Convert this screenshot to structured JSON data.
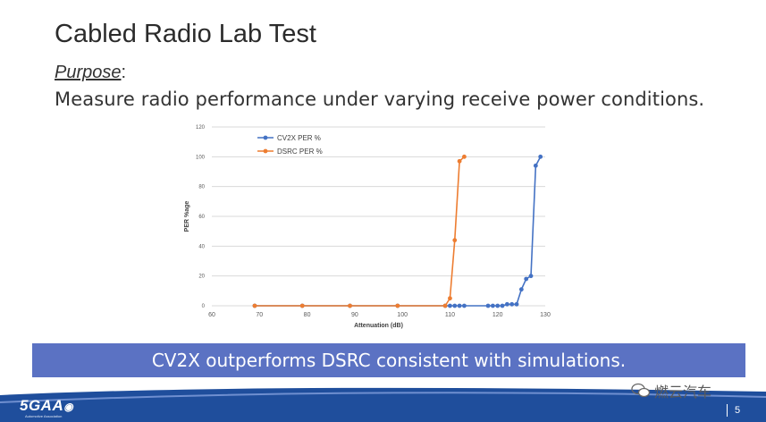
{
  "slide": {
    "title": "Cabled Radio Lab Test",
    "purpose_label": "Purpose",
    "purpose_colon": ":",
    "purpose_text": "Measure radio performance under varying receive power conditions.",
    "banner_text": "CV2X outperforms DSRC consistent with simulations.",
    "page_number": "5",
    "logo_text": "5GAA",
    "logo_subtext": "Automotive Association",
    "watermark_text": "燃云汽车"
  },
  "colors": {
    "banner": "#5b72c3",
    "cv2x": "#4472c4",
    "dsrc": "#ed7d31",
    "footer": "#1f4e9c"
  },
  "chart_data": {
    "type": "line",
    "title": "",
    "xlabel": "Attenuation (dB)",
    "ylabel": "PER %age",
    "xlim": [
      60,
      130
    ],
    "ylim": [
      0,
      120
    ],
    "xticks": [
      60,
      70,
      80,
      90,
      100,
      110,
      120,
      130
    ],
    "yticks": [
      0,
      20,
      40,
      60,
      80,
      100,
      120
    ],
    "legend_position": "top-left",
    "grid": "horizontal",
    "series": [
      {
        "name": "CV2X PER %",
        "color": "#4472c4",
        "points": [
          [
            69,
            0
          ],
          [
            79,
            0
          ],
          [
            89,
            0
          ],
          [
            99,
            0
          ],
          [
            109,
            0
          ],
          [
            110,
            0
          ],
          [
            111,
            0
          ],
          [
            112,
            0
          ],
          [
            113,
            0
          ],
          [
            118,
            0
          ],
          [
            119,
            0
          ],
          [
            120,
            0
          ],
          [
            121,
            0
          ],
          [
            122,
            1
          ],
          [
            123,
            1
          ],
          [
            124,
            1
          ],
          [
            125,
            11
          ],
          [
            126,
            18
          ],
          [
            127,
            20
          ],
          [
            128,
            94
          ],
          [
            129,
            100
          ]
        ]
      },
      {
        "name": "DSRC PER %",
        "color": "#ed7d31",
        "points": [
          [
            69,
            0
          ],
          [
            79,
            0
          ],
          [
            89,
            0
          ],
          [
            99,
            0
          ],
          [
            109,
            0
          ],
          [
            110,
            5
          ],
          [
            111,
            44
          ],
          [
            112,
            97
          ],
          [
            113,
            100
          ]
        ]
      }
    ]
  }
}
